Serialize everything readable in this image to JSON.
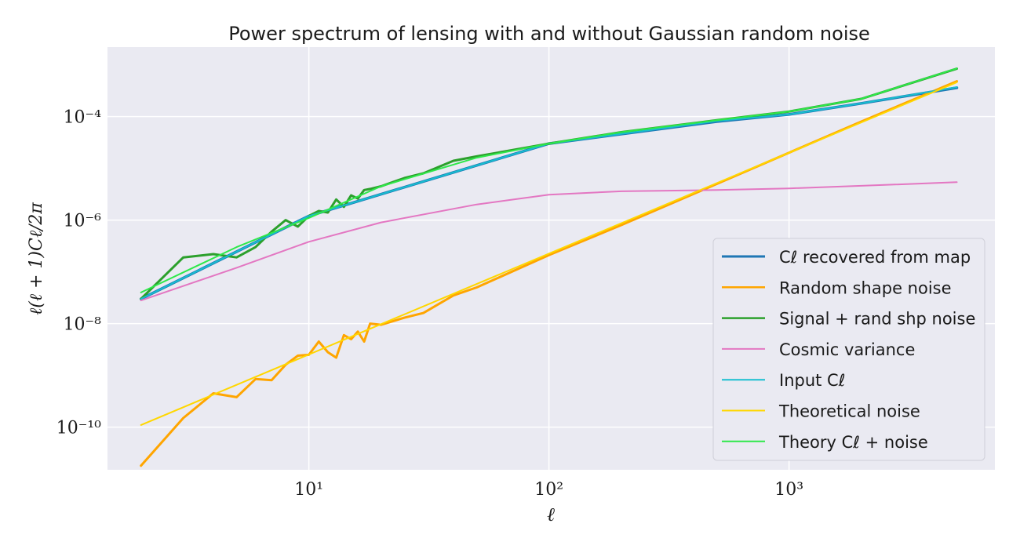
{
  "chart_data": {
    "type": "line",
    "title": "Power spectrum of lensing with and without Gaussian random noise",
    "xlabel": "ℓ",
    "ylabel": "ℓ(ℓ + 1)Cℓ/2π",
    "xscale": "log",
    "yscale": "log",
    "xlim": [
      1.45,
      7200
    ],
    "ylim": [
      1.5e-11,
      0.0022
    ],
    "x_ticks": [
      {
        "value": 10,
        "label": "10¹"
      },
      {
        "value": 100,
        "label": "10²"
      },
      {
        "value": 1000,
        "label": "10³"
      }
    ],
    "y_ticks": [
      {
        "value": 1e-10,
        "label": "10⁻¹⁰"
      },
      {
        "value": 1e-08,
        "label": "10⁻⁸"
      },
      {
        "value": 1e-06,
        "label": "10⁻⁶"
      },
      {
        "value": 0.0001,
        "label": "10⁻⁴"
      }
    ],
    "grid": true,
    "legend_position": "lower-right",
    "series": [
      {
        "name": "Cℓ recovered from map",
        "color": "#1f77b4",
        "width": 3.5,
        "x": [
          2,
          10,
          100,
          500,
          1000,
          2000,
          5000
        ],
        "y": [
          3e-08,
          1.2e-06,
          3e-05,
          8e-05,
          0.00011,
          0.00018,
          0.00036
        ]
      },
      {
        "name": "Random shape noise",
        "color": "#ffa500",
        "width": 3,
        "x": [
          2,
          3,
          4,
          5,
          6,
          7,
          8,
          9,
          10,
          11,
          12,
          13,
          14,
          15,
          16,
          17,
          18,
          20,
          25,
          30,
          40,
          50,
          100,
          200,
          500,
          1000,
          2000,
          5000
        ],
        "y": [
          1.8e-11,
          1.5e-10,
          4.5e-10,
          3.8e-10,
          8.5e-10,
          8.1e-10,
          1.6e-09,
          2.4e-09,
          2.5e-09,
          4.5e-09,
          2.8e-09,
          2.2e-09,
          6e-09,
          5e-09,
          7e-09,
          4.5e-09,
          1e-08,
          9.5e-09,
          1.3e-08,
          1.6e-08,
          3.5e-08,
          5e-08,
          2.1e-07,
          8e-07,
          5e-06,
          2e-05,
          8e-05,
          0.00048
        ]
      },
      {
        "name": "Signal + rand shp noise",
        "color": "#2ca02c",
        "width": 3,
        "x": [
          2,
          3,
          4,
          5,
          6,
          7,
          8,
          9,
          10,
          11,
          12,
          13,
          14,
          15,
          16,
          17,
          18,
          20,
          25,
          30,
          40,
          50,
          100,
          200,
          500,
          1000,
          2000,
          5000
        ],
        "y": [
          3e-08,
          1.9e-07,
          2.2e-07,
          1.9e-07,
          3e-07,
          6e-07,
          1e-06,
          7.5e-07,
          1.2e-06,
          1.5e-06,
          1.4e-06,
          2.5e-06,
          1.8e-06,
          3e-06,
          2.6e-06,
          3.8e-06,
          4e-06,
          4.5e-06,
          6.5e-06,
          8e-06,
          1.4e-05,
          1.7e-05,
          3e-05,
          5e-05,
          8.5e-05,
          0.000125,
          0.00022,
          0.00084
        ]
      },
      {
        "name": "Cosmic variance",
        "color": "#e377c2",
        "width": 2,
        "x": [
          2,
          5,
          10,
          20,
          50,
          100,
          200,
          500,
          1000,
          2000,
          5000
        ],
        "y": [
          2.8e-08,
          1.2e-07,
          3.8e-07,
          9e-07,
          2e-06,
          3.1e-06,
          3.6e-06,
          3.8e-06,
          4.1e-06,
          4.6e-06,
          5.4e-06
        ]
      },
      {
        "name": "Input Cℓ",
        "color": "#17becf",
        "width": 2,
        "x": [
          2,
          10,
          100,
          500,
          1000,
          2000,
          5000
        ],
        "y": [
          3e-08,
          1.2e-06,
          3e-05,
          8.2e-05,
          0.00011,
          0.00018,
          0.00037
        ]
      },
      {
        "name": "Theoretical noise",
        "color": "#ffd700",
        "width": 2,
        "x": [
          2,
          5000
        ],
        "y": [
          1.1e-10,
          0.00046
        ]
      },
      {
        "name": "Theory Cℓ + noise",
        "color": "#2ee84a",
        "width": 2,
        "x": [
          2,
          5,
          10,
          20,
          50,
          100,
          200,
          500,
          1000,
          2000,
          5000
        ],
        "y": [
          4e-08,
          3e-07,
          1.1e-06,
          4.5e-06,
          1.6e-05,
          3e-05,
          5e-05,
          8.5e-05,
          0.000125,
          0.00022,
          0.00085
        ]
      }
    ]
  }
}
